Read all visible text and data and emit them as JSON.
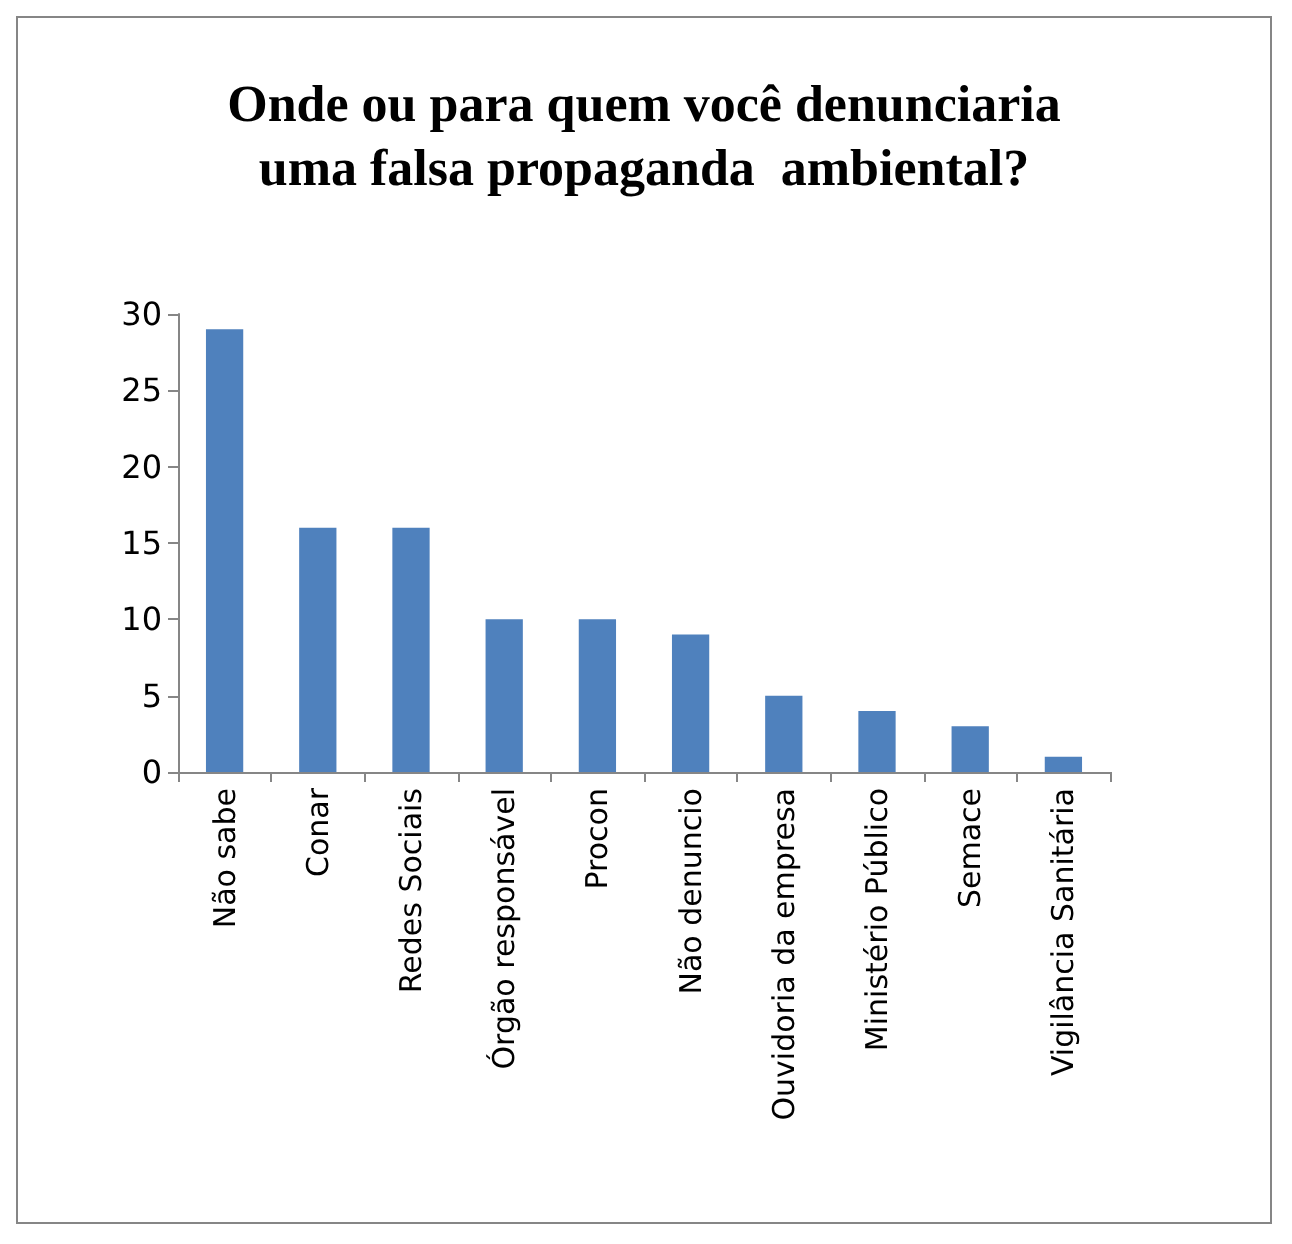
{
  "chart_data": {
    "type": "bar",
    "title": "Onde ou para quem você denunciaria\numa falsa propaganda  ambiental?",
    "categories": [
      "Não sabe",
      "Conar",
      "Redes Sociais",
      "Órgão responsável",
      "Procon",
      "Não denuncio",
      "Ouvidoria da empresa",
      "Ministério Público",
      "Semace",
      "Vigilância Sanitária"
    ],
    "values": [
      29,
      16,
      16,
      10,
      10,
      9,
      5,
      4,
      3,
      1
    ],
    "color": "#4f81bd",
    "ylim": [
      0,
      30
    ],
    "yticks": [
      0,
      5,
      10,
      15,
      20,
      25,
      30
    ],
    "grid": false
  }
}
